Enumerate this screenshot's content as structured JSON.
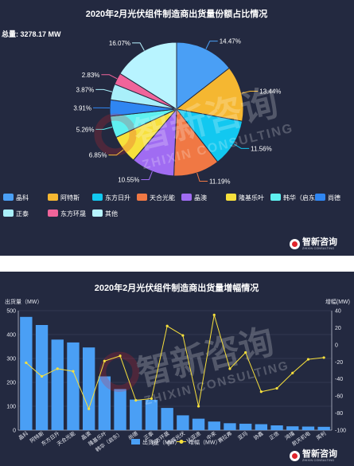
{
  "watermark": {
    "text": "智新咨询",
    "sub": "ZHIXIN CONSULTING"
  },
  "logo": {
    "text": "智新咨询",
    "sub": "ZHIXIN CONSULTING"
  },
  "chart_data": [
    {
      "type": "pie",
      "title": "2020年2月光伏组件制造商出货量份额占比情况",
      "subtitle": "总量: 3278.17 MW",
      "legend_position": "bottom",
      "slices": [
        {
          "name": "晶科",
          "value": 14.47,
          "label": "14.47%",
          "color": "#4a9ff5"
        },
        {
          "name": "阿特斯",
          "value": 13.44,
          "label": "13.44%",
          "color": "#f5b731"
        },
        {
          "name": "东方日升",
          "value": 11.56,
          "label": "11.56%",
          "color": "#12c8f0"
        },
        {
          "name": "天合光能",
          "value": 11.19,
          "label": "11.19%",
          "color": "#f07844"
        },
        {
          "name": "晶澳",
          "value": 10.55,
          "label": "10.55%",
          "color": "#a06cf2"
        },
        {
          "name": "隆基乐叶",
          "value": 6.85,
          "label": "6.85%",
          "color": "#f7e03c"
        },
        {
          "name": "韩华（启东）",
          "value": 5.26,
          "label": "5.26%",
          "color": "#5ff0f0"
        },
        {
          "name": "尚德",
          "value": 3.91,
          "label": "3.91%",
          "color": "#2f86f2"
        },
        {
          "name": "正泰",
          "value": 3.87,
          "label": "3.87%",
          "color": "#a9effa"
        },
        {
          "name": "东方环晟",
          "value": 2.83,
          "label": "2.83%",
          "color": "#f0649a"
        },
        {
          "name": "其他",
          "value": 16.07,
          "label": "16.07%",
          "color": "#b8f4ff"
        }
      ]
    },
    {
      "type": "bar",
      "title": "2020年2月光伏组件制造商出货量增幅情况",
      "ylabel_left": "出货量（MW）",
      "ylabel_right": "增幅(MW)",
      "ylim_left": [
        0,
        500
      ],
      "yticks_left": [
        0,
        100,
        200,
        300,
        400,
        500
      ],
      "ylim_right": [
        -100,
        40
      ],
      "yticks_right": [
        40,
        20,
        0,
        -20,
        -40,
        -60,
        -80,
        -100
      ],
      "legend_position": "bottom",
      "categories": [
        "晶科",
        "阿特斯",
        "东方日升",
        "天合光能",
        "晶澳",
        "隆基乐叶",
        "韩华（启东）",
        "尚德",
        "正泰",
        "东方环晟",
        "腾晖光伏",
        "比亚迪",
        "中来",
        "赛拉弗",
        "亚玛",
        "协鑫",
        "正信",
        "鸿禧",
        "航天机电",
        "英利"
      ],
      "series": [
        {
          "name": "出货量（MW）",
          "kind": "bar",
          "axis": "left",
          "color": "#4a9ff5",
          "values": [
            474,
            440,
            379,
            367,
            346,
            225,
            172,
            128,
            127,
            93,
            62,
            48,
            36,
            29,
            27,
            25,
            20,
            16,
            15,
            14
          ]
        },
        {
          "name": "增幅（MW）",
          "kind": "line",
          "axis": "right",
          "color": "#f7e03c",
          "values": [
            -21,
            -37,
            -28,
            -31,
            -75,
            -19,
            -13,
            -65,
            -63,
            22,
            11,
            -72,
            35,
            -28,
            -9,
            -55,
            -51,
            -33,
            -17,
            -15
          ]
        }
      ]
    }
  ]
}
